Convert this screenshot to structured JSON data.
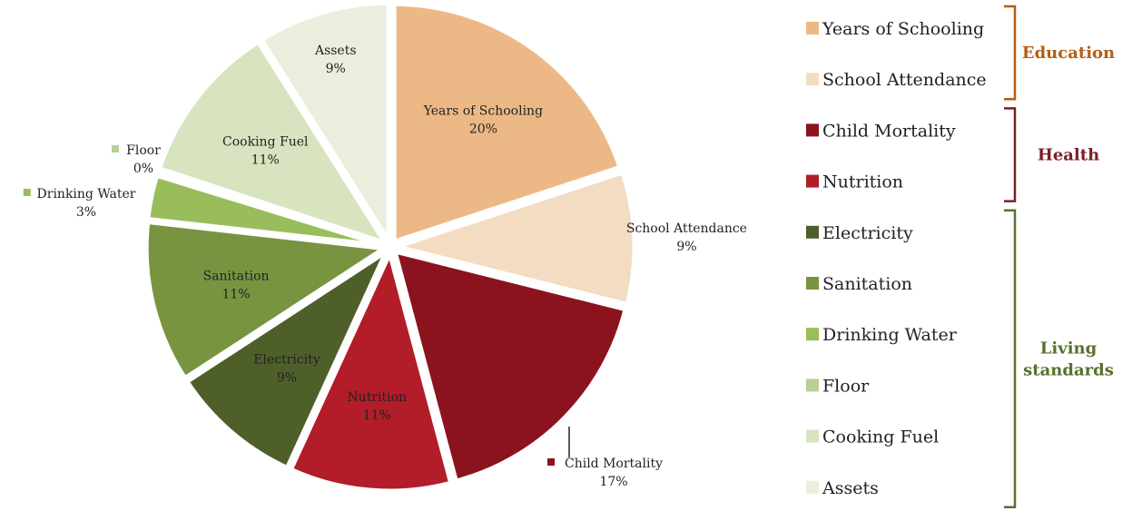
{
  "chart_data": {
    "type": "pie",
    "title": "",
    "slices": [
      {
        "label": "Years of Schooling",
        "value": 20,
        "value_label": "20%",
        "color": "#ECB986",
        "group": "Education"
      },
      {
        "label": "School Attendance",
        "value": 9,
        "value_label": "9%",
        "color": "#F4DCC3",
        "group": "Education"
      },
      {
        "label": "Child Mortality",
        "value": 17,
        "value_label": "17%",
        "color": "#8B131E",
        "group": "Health"
      },
      {
        "label": "Nutrition",
        "value": 11,
        "value_label": "11%",
        "color": "#B21D29",
        "group": "Health"
      },
      {
        "label": "Electricity",
        "value": 9,
        "value_label": "9%",
        "color": "#4E5F2A",
        "group": "Living standards"
      },
      {
        "label": "Sanitation",
        "value": 11,
        "value_label": "11%",
        "color": "#789440",
        "group": "Living standards"
      },
      {
        "label": "Drinking Water",
        "value": 3,
        "value_label": "3%",
        "color": "#99BD5A",
        "group": "Living standards"
      },
      {
        "label": "Floor",
        "value": 0.3,
        "value_label": "0%",
        "color": "#B9CF95",
        "group": "Living standards"
      },
      {
        "label": "Cooking Fuel",
        "value": 11,
        "value_label": "11%",
        "color": "#D7E4BF",
        "group": "Living standards"
      },
      {
        "label": "Assets",
        "value": 9,
        "value_label": "9%",
        "color": "#EAEFDD",
        "group": "Living standards"
      }
    ],
    "groups": [
      {
        "name_lines": [
          "Education"
        ],
        "color": "#B35E14"
      },
      {
        "name_lines": [
          "Health"
        ],
        "color": "#7B2028"
      },
      {
        "name_lines": [
          "Living",
          "standards"
        ],
        "color": "#58702E"
      }
    ],
    "legend_placement": "right"
  }
}
